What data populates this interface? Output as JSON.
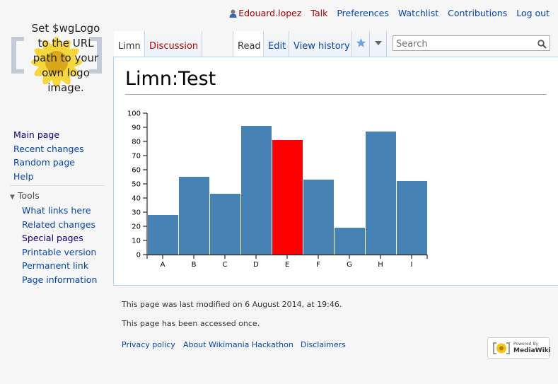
{
  "personal": {
    "user": "Edouard.lopez",
    "talk": "Talk",
    "preferences": "Preferences",
    "watchlist": "Watchlist",
    "contributions": "Contributions",
    "logout": "Log out"
  },
  "logo": {
    "text_lines": [
      "Set $wgLogo",
      "to the URL",
      "path to your",
      "own logo",
      "image."
    ]
  },
  "sidebar": {
    "nav": [
      "Main page",
      "Recent changes",
      "Random page",
      "Help"
    ],
    "tools_heading": "Tools",
    "tools": [
      "What links here",
      "Related changes",
      "Special pages",
      "Printable version",
      "Permanent link",
      "Page information"
    ]
  },
  "tabs": {
    "page": "Limn",
    "discussion": "Discussion",
    "read": "Read",
    "edit": "Edit",
    "history": "View history"
  },
  "search": {
    "placeholder": "Search"
  },
  "page": {
    "title": "Limn:Test"
  },
  "chart_data": {
    "type": "bar",
    "categories": [
      "A",
      "B",
      "C",
      "D",
      "E",
      "F",
      "G",
      "H",
      "I"
    ],
    "values": [
      28,
      55,
      43,
      91,
      81,
      53,
      19,
      87,
      52
    ],
    "highlight_index": 4,
    "colors": {
      "bar": "#4682b4",
      "highlight": "#ff0000"
    },
    "ylim": [
      0,
      100
    ],
    "yticks": [
      0,
      10,
      20,
      30,
      40,
      50,
      60,
      70,
      80,
      90,
      100
    ],
    "grid": false,
    "title": "",
    "xlabel": "",
    "ylabel": ""
  },
  "footer": {
    "last_modified": "This page was last modified on 6 August 2014, at 19:46.",
    "accessed": "This page has been accessed once.",
    "links": [
      "Privacy policy",
      "About Wikimania Hackathon",
      "Disclaimers"
    ],
    "powered_top": "Powered By",
    "powered_main": "MediaWiki"
  }
}
